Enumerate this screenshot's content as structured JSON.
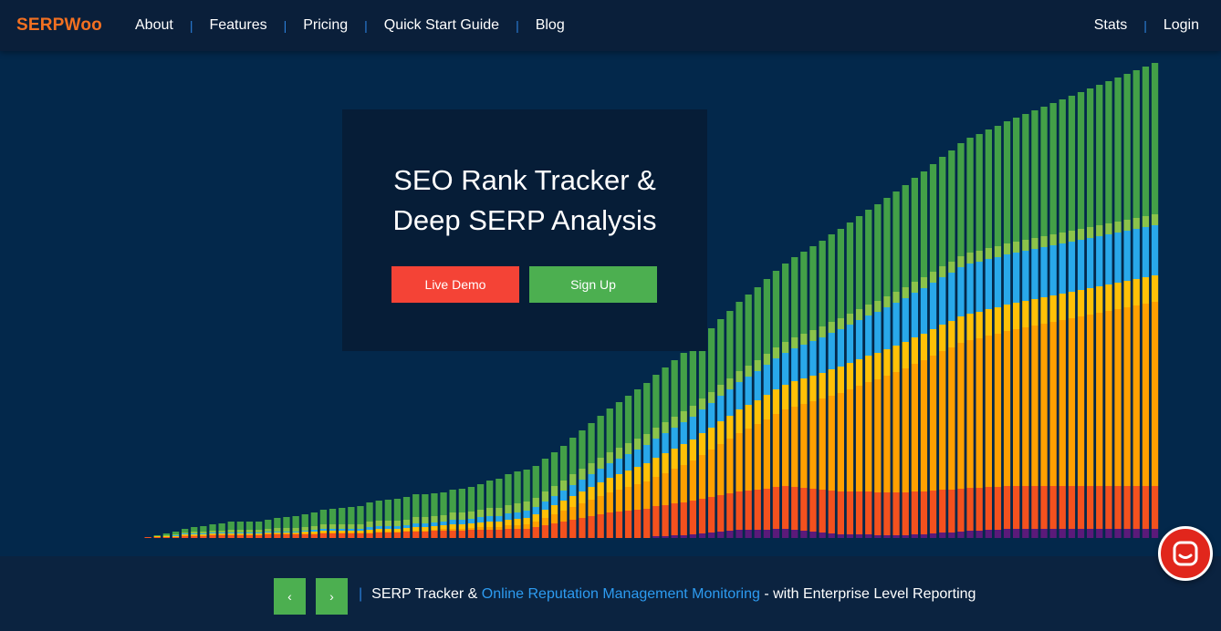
{
  "brand": {
    "logo_text": "SERPWoo",
    "accent": "#f37021"
  },
  "nav": {
    "left_items": [
      "About",
      "Features",
      "Pricing",
      "Quick Start Guide",
      "Blog"
    ],
    "right_items": [
      "Stats",
      "Login"
    ]
  },
  "hero": {
    "title_line1": "SEO Rank Tracker &",
    "title_line2": "Deep SERP Analysis",
    "demo_button": "Live Demo",
    "signup_button": "Sign Up"
  },
  "footer": {
    "prev_icon": "chevron-left-icon",
    "next_icon": "chevron-right-icon",
    "prev_glyph": "‹",
    "next_glyph": "›",
    "separator": "|",
    "text_before": "SERP Tracker & ",
    "link_text": "Online Reputation Management Monitoring",
    "text_after": " - with Enterprise Level Reporting"
  },
  "chat": {
    "icon": "chat-icon"
  },
  "chart_data": {
    "type": "bar",
    "stacked": true,
    "series": [
      {
        "color": "#5b1a7a",
        "values": [
          0,
          0,
          0,
          0,
          0,
          0,
          0,
          0,
          0,
          0,
          0,
          0,
          0,
          0,
          0,
          0,
          0,
          0,
          0,
          0,
          0,
          0,
          0,
          0,
          0,
          0,
          0,
          0,
          0,
          0,
          0,
          0,
          0,
          0,
          0,
          0,
          0,
          0,
          0,
          0,
          0,
          0,
          0,
          0,
          0,
          0,
          0,
          0,
          0,
          0,
          0,
          0,
          0,
          0,
          0,
          0,
          0,
          0,
          0,
          2,
          2,
          3,
          3,
          4,
          5,
          6,
          7,
          8,
          9,
          9,
          9,
          9,
          10,
          10,
          9,
          8,
          7,
          6,
          5,
          4,
          4,
          4,
          4,
          3,
          3,
          3,
          3,
          4,
          4,
          5,
          6,
          6,
          7,
          8,
          8,
          9,
          9,
          10,
          10,
          10,
          10,
          10,
          10,
          10,
          10,
          10,
          10,
          10,
          10,
          10,
          10,
          10,
          10,
          10
        ]
      },
      {
        "color": "#f4511e",
        "values": [
          0,
          0,
          0,
          0,
          1,
          1,
          1,
          1,
          2,
          2,
          2,
          3,
          3,
          3,
          3,
          3,
          3,
          4,
          4,
          4,
          4,
          4,
          4,
          5,
          5,
          5,
          5,
          5,
          5,
          6,
          6,
          6,
          7,
          7,
          7,
          8,
          8,
          8,
          8,
          9,
          9,
          9,
          9,
          10,
          10,
          10,
          12,
          14,
          16,
          18,
          20,
          22,
          24,
          26,
          28,
          29,
          30,
          31,
          32,
          33,
          34,
          35,
          36,
          37,
          38,
          39,
          40,
          41,
          42,
          43,
          44,
          45,
          46,
          47,
          47,
          47,
          47,
          47,
          47,
          47,
          47,
          47,
          47,
          47,
          47,
          47,
          47,
          47,
          47,
          47,
          47,
          47,
          47,
          47,
          47,
          47,
          47,
          47,
          47,
          47,
          47,
          47,
          47,
          47,
          47,
          47,
          47,
          47,
          47,
          47,
          47,
          47,
          47,
          47
        ]
      },
      {
        "color": "#ffa000",
        "values": [
          0,
          0,
          0,
          0,
          0,
          0,
          0,
          0,
          1,
          1,
          1,
          1,
          1,
          1,
          1,
          1,
          1,
          1,
          1,
          1,
          1,
          1,
          1,
          1,
          1,
          1,
          1,
          1,
          1,
          1,
          1,
          1,
          1,
          1,
          1,
          1,
          2,
          2,
          2,
          2,
          3,
          3,
          3,
          4,
          4,
          5,
          6,
          8,
          10,
          12,
          14,
          16,
          18,
          20,
          22,
          24,
          26,
          28,
          30,
          32,
          35,
          38,
          41,
          44,
          48,
          52,
          56,
          60,
          64,
          68,
          72,
          76,
          80,
          84,
          88,
          92,
          96,
          100,
          104,
          108,
          112,
          116,
          120,
          124,
          128,
          132,
          136,
          140,
          144,
          148,
          152,
          156,
          160,
          162,
          164,
          166,
          168,
          170,
          172,
          174,
          176,
          178,
          180,
          182,
          184,
          186,
          188,
          190,
          192,
          194,
          196,
          198,
          200,
          202
        ]
      },
      {
        "color": "#ffc107",
        "values": [
          0,
          0,
          0,
          0,
          0,
          1,
          1,
          1,
          1,
          1,
          1,
          1,
          1,
          1,
          1,
          1,
          1,
          1,
          1,
          1,
          1,
          2,
          2,
          2,
          2,
          2,
          2,
          2,
          3,
          3,
          3,
          3,
          3,
          4,
          4,
          4,
          4,
          5,
          5,
          5,
          5,
          6,
          6,
          6,
          7,
          7,
          8,
          9,
          10,
          11,
          12,
          13,
          14,
          15,
          16,
          17,
          18,
          19,
          20,
          21,
          22,
          22,
          23,
          23,
          24,
          24,
          25,
          25,
          26,
          26,
          26,
          27,
          27,
          27,
          28,
          28,
          28,
          28,
          29,
          29,
          29,
          29,
          29,
          29,
          29,
          29,
          29,
          29,
          29,
          29,
          29,
          29,
          29,
          29,
          29,
          29,
          29,
          29,
          29,
          29,
          29,
          29,
          29,
          29,
          29,
          29,
          29,
          29,
          29,
          29,
          29,
          29,
          29,
          29
        ]
      },
      {
        "color": "#29a8ea",
        "values": [
          0,
          0,
          0,
          0,
          0,
          0,
          0,
          1,
          1,
          1,
          1,
          1,
          1,
          1,
          1,
          1,
          1,
          1,
          1,
          1,
          1,
          1,
          2,
          2,
          2,
          2,
          2,
          2,
          3,
          3,
          3,
          3,
          3,
          4,
          4,
          4,
          4,
          5,
          5,
          5,
          6,
          6,
          6,
          7,
          7,
          8,
          8,
          9,
          10,
          11,
          12,
          13,
          14,
          15,
          16,
          17,
          18,
          19,
          20,
          21,
          22,
          23,
          24,
          25,
          26,
          27,
          28,
          29,
          30,
          31,
          32,
          33,
          34,
          35,
          36,
          37,
          38,
          39,
          40,
          41,
          42,
          43,
          44,
          45,
          46,
          47,
          48,
          49,
          50,
          51,
          52,
          53,
          54,
          55,
          55,
          55,
          55,
          55,
          55,
          55,
          55,
          55,
          55,
          55,
          55,
          55,
          55,
          55,
          55,
          55,
          55,
          55,
          55,
          55
        ]
      },
      {
        "color": "#8bc34a",
        "values": [
          0,
          0,
          0,
          0,
          0,
          0,
          1,
          1,
          1,
          2,
          2,
          2,
          2,
          3,
          3,
          3,
          3,
          3,
          4,
          4,
          4,
          4,
          4,
          5,
          5,
          5,
          5,
          5,
          6,
          6,
          6,
          6,
          6,
          7,
          7,
          7,
          7,
          8,
          8,
          8,
          8,
          9,
          9,
          9,
          10,
          10,
          10,
          11,
          11,
          11,
          12,
          12,
          12,
          12,
          12,
          12,
          12,
          12,
          12,
          12,
          12,
          12,
          12,
          12,
          12,
          12,
          12,
          12,
          12,
          12,
          12,
          12,
          12,
          12,
          12,
          12,
          12,
          12,
          12,
          12,
          12,
          12,
          12,
          12,
          12,
          12,
          12,
          12,
          12,
          12,
          12,
          12,
          12,
          12,
          12,
          12,
          12,
          12,
          12,
          12,
          12,
          12,
          12,
          12,
          12,
          12,
          12,
          12,
          12,
          12,
          12,
          12,
          12,
          12
        ]
      },
      {
        "color": "#43a047",
        "values": [
          0,
          0,
          0,
          0,
          0,
          1,
          2,
          3,
          4,
          5,
          6,
          7,
          8,
          9,
          9,
          9,
          9,
          10,
          11,
          12,
          13,
          14,
          15,
          16,
          17,
          18,
          19,
          20,
          21,
          22,
          23,
          24,
          25,
          25,
          25,
          25,
          25,
          25,
          26,
          27,
          28,
          30,
          32,
          34,
          35,
          35,
          35,
          36,
          37,
          38,
          40,
          42,
          44,
          46,
          48,
          50,
          52,
          54,
          56,
          58,
          60,
          62,
          64,
          66,
          68,
          70,
          72,
          74,
          76,
          78,
          80,
          82,
          84,
          86,
          88,
          90,
          92,
          94,
          96,
          98,
          100,
          102,
          104,
          106,
          108,
          110,
          112,
          114,
          116,
          118,
          120,
          122,
          124,
          126,
          128,
          130,
          132,
          134,
          136,
          138,
          140,
          142,
          144,
          146,
          148,
          150,
          152,
          154,
          156,
          158,
          160,
          162,
          164,
          166
        ]
      }
    ]
  }
}
